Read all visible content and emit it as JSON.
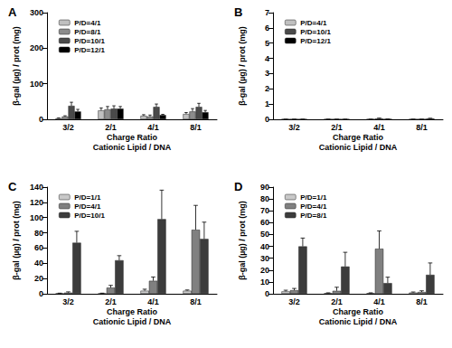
{
  "chart_data": [
    {
      "type": "bar",
      "title": "A",
      "x_label": "Charge Ratio\nCationic Lipid / DNA",
      "y_label": "β-gal (µg) / prot (mg)",
      "categories": [
        "3/2",
        "2/1",
        "4/1",
        "8/1"
      ],
      "series": [
        {
          "name": "P/D=4/1",
          "color": "#c0c0c0",
          "values": [
            3,
            25,
            10,
            15
          ],
          "errors": [
            1,
            7,
            3,
            4
          ]
        },
        {
          "name": "P/D=8/1",
          "color": "#8c8c8c",
          "values": [
            8,
            28,
            8,
            22
          ],
          "errors": [
            2,
            8,
            4,
            8
          ]
        },
        {
          "name": "P/D=10/1",
          "color": "#4a4a4a",
          "values": [
            38,
            30,
            35,
            35
          ],
          "errors": [
            10,
            8,
            8,
            10
          ]
        },
        {
          "name": "P/D=12/1",
          "color": "#000000",
          "values": [
            22,
            30,
            12,
            20
          ],
          "errors": [
            6,
            6,
            2,
            5
          ]
        }
      ],
      "ylim": [
        0,
        300
      ],
      "yticks": [
        0,
        100,
        200,
        300
      ],
      "grid": false,
      "legend": "top-left"
    },
    {
      "type": "bar",
      "title": "B",
      "x_label": "Charge Ratio\nCationic Lipid / DNA",
      "y_label": "β-gal (µg) / prot (mg)",
      "categories": [
        "3/2",
        "2/1",
        "4/1",
        "8/1"
      ],
      "series": [
        {
          "name": "P/D=4/1",
          "color": "#c0c0c0",
          "values": [
            0.01,
            0.01,
            0.01,
            0.01
          ],
          "errors": [
            0,
            0,
            0,
            0
          ]
        },
        {
          "name": "P/D=10/1",
          "color": "#4a4a4a",
          "values": [
            0.01,
            0.01,
            0.05,
            0.01
          ],
          "errors": [
            0,
            0,
            0.03,
            0
          ]
        },
        {
          "name": "P/D=12/1",
          "color": "#000000",
          "values": [
            0.01,
            0.01,
            0.02,
            0.05
          ],
          "errors": [
            0,
            0,
            0,
            0.02
          ]
        }
      ],
      "ylim": [
        0,
        7
      ],
      "yticks": [
        0,
        1,
        2,
        3,
        4,
        5,
        6,
        7
      ],
      "grid": false,
      "legend": "top-left"
    },
    {
      "type": "bar",
      "title": "C",
      "x_label": "Charge Ratio\nCationic Lipid / DNA",
      "y_label": "β-gal (µg) / prot (mg)",
      "categories": [
        "3/2",
        "2/1",
        "4/1",
        "8/1"
      ],
      "series": [
        {
          "name": "P/D=1/1",
          "color": "#c8c8c8",
          "values": [
            0.5,
            0.5,
            4,
            4
          ],
          "errors": [
            0.3,
            0.3,
            2,
            1
          ]
        },
        {
          "name": "P/D=4/1",
          "color": "#808080",
          "values": [
            1.5,
            8,
            17,
            84
          ],
          "errors": [
            1,
            3,
            5,
            32
          ]
        },
        {
          "name": "P/D=10/1",
          "color": "#3c3c3c",
          "values": [
            67,
            44,
            98,
            72
          ],
          "errors": [
            15,
            6,
            38,
            22
          ]
        }
      ],
      "ylim": [
        0,
        140
      ],
      "yticks": [
        0,
        20,
        40,
        60,
        80,
        100,
        120,
        140
      ],
      "grid": false,
      "legend": "top-left"
    },
    {
      "type": "bar",
      "title": "D",
      "x_label": "Charge Ratio\nCationic Lipid / DNA",
      "y_label": "β-gal (µg) / prot (mg)",
      "categories": [
        "3/2",
        "2/1",
        "4/1",
        "8/1"
      ],
      "series": [
        {
          "name": "P/D=1/1",
          "color": "#c8c8c8",
          "values": [
            2,
            0.5,
            0.5,
            1
          ],
          "errors": [
            1,
            0.3,
            0.3,
            0.5
          ]
        },
        {
          "name": "P/D=4/1",
          "color": "#808080",
          "values": [
            3,
            2.5,
            38,
            1.5
          ],
          "errors": [
            1.5,
            3,
            15,
            1
          ]
        },
        {
          "name": "P/D=8/1",
          "color": "#3c3c3c",
          "values": [
            40,
            23,
            9,
            16
          ],
          "errors": [
            7,
            12,
            5,
            10
          ]
        }
      ],
      "ylim": [
        0,
        90
      ],
      "yticks": [
        0,
        10,
        20,
        30,
        40,
        50,
        60,
        70,
        80,
        90
      ],
      "grid": false,
      "legend": "top-left"
    }
  ]
}
